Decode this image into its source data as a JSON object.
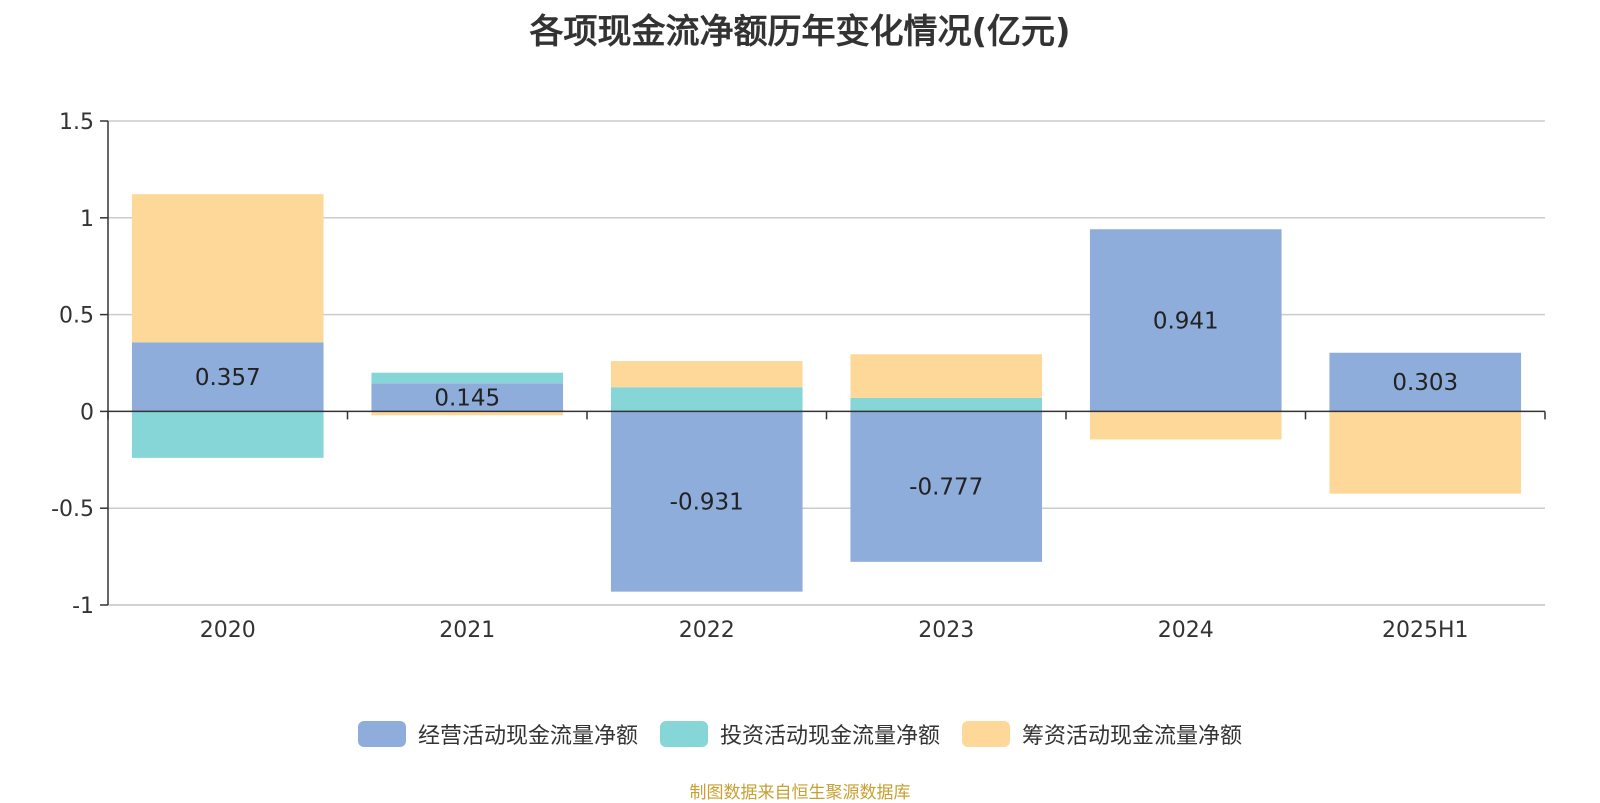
{
  "chart_data": {
    "type": "bar",
    "stacked": true,
    "title": "各项现金流净额历年变化情况(亿元)",
    "categories": [
      "2020",
      "2021",
      "2022",
      "2023",
      "2024",
      "2025H1"
    ],
    "series": [
      {
        "name": "经营活动现金流量净额",
        "color": "#8eadda",
        "values": [
          0.357,
          0.145,
          -0.931,
          -0.777,
          0.941,
          0.303
        ],
        "labeled": true
      },
      {
        "name": "投资活动现金流量净额",
        "color": "#86d5d7",
        "values": [
          -0.24,
          0.055,
          0.125,
          0.07,
          0.0,
          0.0
        ],
        "labeled": false
      },
      {
        "name": "筹资活动现金流量净额",
        "color": "#fdd899",
        "values": [
          0.765,
          -0.02,
          0.135,
          0.225,
          -0.145,
          -0.425
        ],
        "labeled": false
      }
    ],
    "ylim": [
      -1,
      1.5
    ],
    "yticks": [
      1.5,
      1,
      0.5,
      0,
      -0.5,
      -1
    ],
    "ytick_labels": [
      "1.5",
      "1",
      "0.5",
      "0",
      "-0.5",
      "-1"
    ],
    "grid": true,
    "legend": "bottom-center"
  },
  "footer": {
    "source": "制图数据来自恒生聚源数据库"
  }
}
